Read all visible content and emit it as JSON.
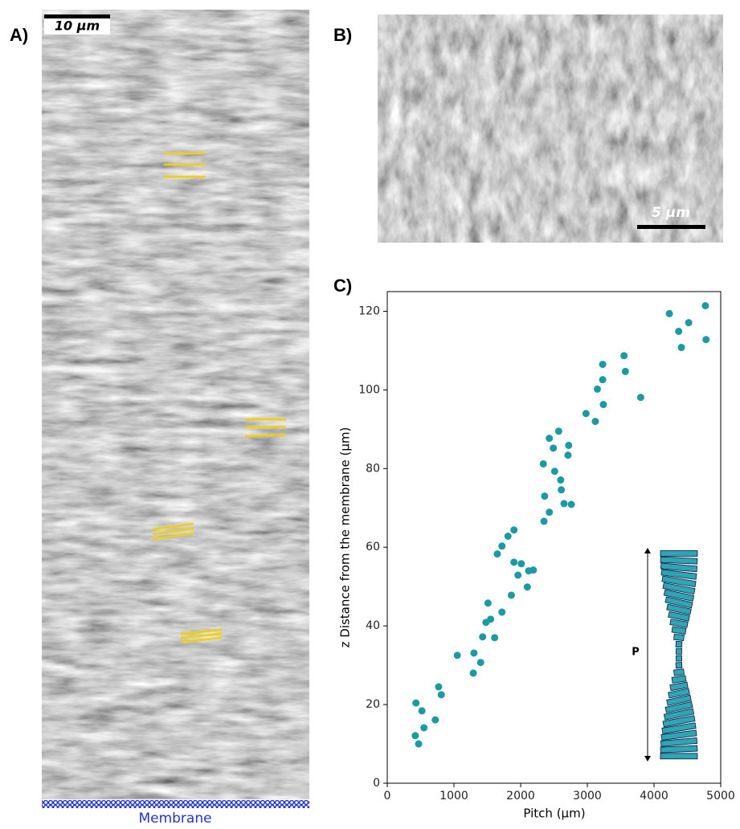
{
  "panels": {
    "a": {
      "label": "A)",
      "scale_bar": "10 µm",
      "bottom_label": "Membrane"
    },
    "b": {
      "label": "B)",
      "scale_bar": "5 µm"
    },
    "c": {
      "label": "C)"
    }
  },
  "chart_data": {
    "type": "scatter",
    "xlabel": "Pitch (µm)",
    "ylabel": "z Distance from the membrane (µm)",
    "annotations": [
      "P"
    ],
    "color": "#1b9aa6",
    "x": [
      430,
      520,
      420,
      470,
      550,
      720,
      770,
      810,
      1050,
      1290,
      1400,
      1300,
      1430,
      1480,
      1510,
      1550,
      1610,
      1720,
      1860,
      1960,
      2010,
      2100,
      2120,
      2190,
      1650,
      1720,
      1810,
      1900,
      1900,
      2350,
      2430,
      2340,
      2360,
      2430,
      2490,
      2510,
      2570,
      2600,
      2610,
      2650,
      2710,
      2720,
      2760,
      2980,
      3120,
      3150,
      3230,
      3230,
      3240,
      3550,
      3570,
      3800,
      4230,
      4370,
      4410,
      4520,
      4770,
      4780
    ],
    "values": [
      20.4,
      18.4,
      12.1,
      10.0,
      14.1,
      16.1,
      24.5,
      22.5,
      32.5,
      28.0,
      30.7,
      33.1,
      37.2,
      40.9,
      45.8,
      41.7,
      37.0,
      43.5,
      47.8,
      52.9,
      55.8,
      49.9,
      54.0,
      54.2,
      58.3,
      60.3,
      62.8,
      64.4,
      56.2,
      66.6,
      68.9,
      81.2,
      73.0,
      87.7,
      85.2,
      79.3,
      89.5,
      77.1,
      74.6,
      71.1,
      83.4,
      85.9,
      70.9,
      94.0,
      92.0,
      100.2,
      102.6,
      106.5,
      96.3,
      108.7,
      104.7,
      98.1,
      119.4,
      114.9,
      110.8,
      117.1,
      121.4,
      112.8
    ],
    "xlim": [
      0,
      5000
    ],
    "ylim": [
      0,
      125
    ],
    "xticks": [
      0,
      1000,
      2000,
      3000,
      4000,
      5000
    ],
    "yticks": [
      0,
      20,
      40,
      60,
      80,
      100,
      120
    ],
    "grid": false
  }
}
